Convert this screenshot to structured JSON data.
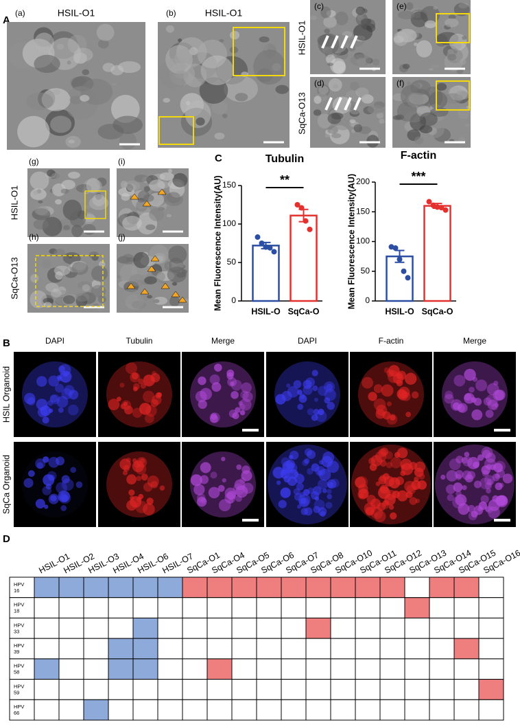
{
  "panel_a": {
    "letter": "A",
    "images": [
      {
        "tag": "(a)",
        "title": "HSIL-O1"
      },
      {
        "tag": "(b)",
        "title": "HSIL-O1"
      },
      {
        "tag": "(c)"
      },
      {
        "tag": "(d)"
      },
      {
        "tag": "(e)"
      },
      {
        "tag": "(f)"
      }
    ],
    "row_labels": [
      "HSIL-O1",
      "SqCa-O13"
    ],
    "lower_tags": [
      "(g)",
      "(h)",
      "(i)",
      "(j)"
    ],
    "lower_row_labels": [
      "HSIL-O1",
      "SqCa-O13"
    ]
  },
  "panel_c": {
    "letter": "C"
  },
  "chart_data": [
    {
      "type": "bar",
      "title": "Tubulin",
      "y_label": "Mean Fluorescence Intensity(AU)",
      "categories": [
        "HSIL-O",
        "SqCa-O"
      ],
      "values": [
        72,
        111
      ],
      "errors": [
        4,
        8
      ],
      "points": [
        [
          83,
          75,
          70,
          69,
          64
        ],
        [
          125,
          121,
          104,
          93
        ]
      ],
      "colors": [
        "#2b4ea2",
        "#e2312f"
      ],
      "significance": "**",
      "ylim": [
        0,
        150
      ],
      "yticks": [
        0,
        50,
        100,
        150
      ]
    },
    {
      "type": "bar",
      "title": "F-actin",
      "y_label": "Mean Fluorescence Intensity(AU)",
      "categories": [
        "HSIL-O",
        "SqCa-O"
      ],
      "values": [
        75,
        160
      ],
      "errors": [
        10,
        4
      ],
      "points": [
        [
          91,
          89,
          70,
          50,
          39
        ],
        [
          167,
          161,
          158,
          157,
          153
        ]
      ],
      "colors": [
        "#2b4ea2",
        "#e2312f"
      ],
      "significance": "***",
      "ylim": [
        0,
        200
      ],
      "yticks": [
        0,
        50,
        100,
        150,
        200
      ]
    }
  ],
  "panel_b": {
    "letter": "B",
    "columns": [
      "DAPI",
      "Tubulin",
      "Merge",
      "DAPI",
      "F-actin",
      "Merge"
    ],
    "rows": [
      "HSIL Organoid",
      "SqCa Organoid"
    ]
  },
  "panel_d": {
    "letter": "D",
    "columns": [
      {
        "label": "HSIL-O1",
        "color": "#8eaadb"
      },
      {
        "label": "HSIL-O2",
        "color": "#8eaadb"
      },
      {
        "label": "HSIL-O3",
        "color": "#8eaadb"
      },
      {
        "label": "HSIL-O4",
        "color": "#8eaadb"
      },
      {
        "label": "HSIL-O6",
        "color": "#8eaadb"
      },
      {
        "label": "HSIL-O7",
        "color": "#8eaadb"
      },
      {
        "label": "SqCa-O1",
        "color": "#ef7f7f"
      },
      {
        "label": "SqCa-O4",
        "color": "#ef7f7f"
      },
      {
        "label": "SqCa-O5",
        "color": "#ef7f7f"
      },
      {
        "label": "SqCa-O6",
        "color": "#ef7f7f"
      },
      {
        "label": "SqCa-O7",
        "color": "#ef7f7f"
      },
      {
        "label": "SqCa-O8",
        "color": "#ef7f7f"
      },
      {
        "label": "SqCa-O10",
        "color": "#ef7f7f"
      },
      {
        "label": "SqCa-O11",
        "color": "#ef7f7f"
      },
      {
        "label": "SqCa-O12",
        "color": "#ef7f7f"
      },
      {
        "label": "SqCa-O13",
        "color": "#ef7f7f"
      },
      {
        "label": "SqCa-O14",
        "color": "#ef7f7f"
      },
      {
        "label": "SqCa-O15",
        "color": "#ef7f7f"
      },
      {
        "label": "SqCa-O16",
        "color": "#ef7f7f"
      }
    ],
    "rows": [
      {
        "label": "HPV",
        "type": "16",
        "cells": [
          1,
          1,
          1,
          1,
          1,
          1,
          1,
          1,
          1,
          1,
          1,
          1,
          1,
          1,
          1,
          0,
          1,
          1,
          0
        ]
      },
      {
        "label": "HPV",
        "type": "18",
        "cells": [
          0,
          0,
          0,
          0,
          0,
          0,
          0,
          0,
          0,
          0,
          0,
          0,
          0,
          0,
          0,
          1,
          0,
          0,
          0
        ]
      },
      {
        "label": "HPV",
        "type": "33",
        "cells": [
          0,
          0,
          0,
          0,
          1,
          0,
          0,
          0,
          0,
          0,
          0,
          1,
          0,
          0,
          0,
          0,
          0,
          0,
          0
        ]
      },
      {
        "label": "HPV",
        "type": "39",
        "cells": [
          0,
          0,
          0,
          1,
          1,
          0,
          0,
          0,
          0,
          0,
          0,
          0,
          0,
          0,
          0,
          0,
          0,
          1,
          0
        ]
      },
      {
        "label": "HPV",
        "type": "58",
        "cells": [
          1,
          0,
          0,
          1,
          1,
          0,
          0,
          1,
          0,
          0,
          0,
          0,
          0,
          0,
          0,
          0,
          0,
          0,
          0
        ]
      },
      {
        "label": "HPV",
        "type": "59",
        "cells": [
          0,
          0,
          0,
          0,
          0,
          0,
          0,
          0,
          0,
          0,
          0,
          0,
          0,
          0,
          0,
          0,
          0,
          0,
          1
        ]
      },
      {
        "label": "HPV",
        "type": "66",
        "cells": [
          0,
          0,
          1,
          0,
          0,
          0,
          0,
          0,
          0,
          0,
          0,
          0,
          0,
          0,
          0,
          0,
          0,
          0,
          0
        ]
      }
    ]
  }
}
